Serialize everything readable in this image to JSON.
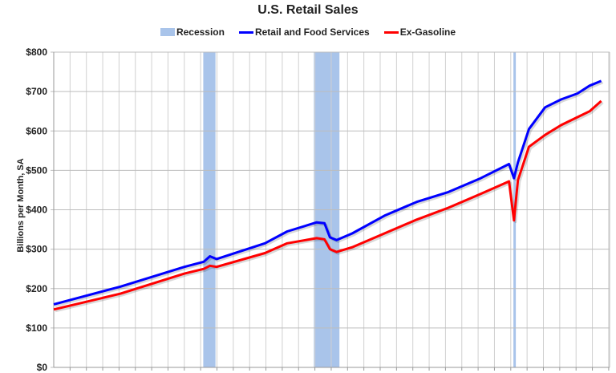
{
  "header": {
    "title": "U.S. Retail Sales"
  },
  "legend": [
    {
      "label": "Recession",
      "kind": "box",
      "color": "#a9c4ea"
    },
    {
      "label": "Retail and Food Services",
      "kind": "line",
      "color": "#0000ff"
    },
    {
      "label": "Ex-Gasoline",
      "kind": "line",
      "color": "#ff0000"
    }
  ],
  "axes": {
    "ylabel": "Billions per Month, SA",
    "yticks": [
      "$0",
      "$100",
      "$200",
      "$300",
      "$400",
      "$500",
      "$600",
      "$700",
      "$800"
    ]
  },
  "chart_data": {
    "type": "line",
    "title": "U.S. Retail Sales",
    "xlabel": "",
    "ylabel": "Billions per Month, SA",
    "ylim": [
      0,
      800
    ],
    "yticks": [
      0,
      100,
      200,
      300,
      400,
      500,
      600,
      700,
      800
    ],
    "grid": true,
    "legend_position": "top",
    "x_note": "x-axis labels not shown; x is relative position across plot (0 = left edge, 1 = right edge)",
    "x": [
      0.0,
      0.12,
      0.235,
      0.27,
      0.281,
      0.293,
      0.38,
      0.42,
      0.473,
      0.487,
      0.497,
      0.509,
      0.537,
      0.595,
      0.653,
      0.71,
      0.768,
      0.819,
      0.828,
      0.835,
      0.855,
      0.884,
      0.913,
      0.942,
      0.964,
      0.985
    ],
    "series": [
      {
        "name": "Retail and Food Services",
        "color": "#0000ff",
        "values": [
          160,
          205,
          255,
          268,
          282,
          275,
          315,
          345,
          368,
          366,
          330,
          323,
          340,
          385,
          420,
          445,
          480,
          516,
          480,
          520,
          605,
          660,
          680,
          695,
          715,
          727
        ]
      },
      {
        "name": "Ex-Gasoline",
        "color": "#ff0000",
        "values": [
          147,
          187,
          238,
          250,
          258,
          255,
          290,
          315,
          328,
          325,
          300,
          293,
          305,
          340,
          375,
          405,
          440,
          472,
          373,
          475,
          560,
          590,
          615,
          635,
          650,
          676
        ]
      }
    ],
    "recessions": [
      {
        "x_start": 0.269,
        "x_end": 0.291
      },
      {
        "x_start": 0.468,
        "x_end": 0.514
      },
      {
        "x_start": 0.827,
        "x_end": 0.831
      }
    ]
  }
}
